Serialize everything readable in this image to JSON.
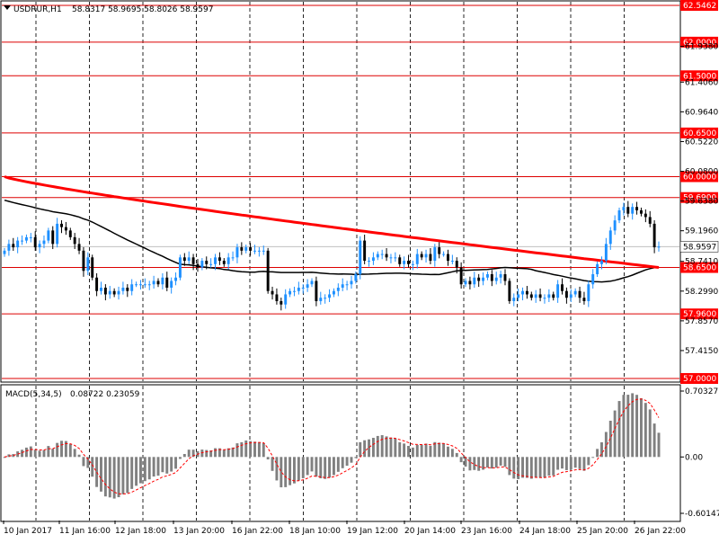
{
  "header": {
    "symbol_timeframe": "USDRUR,H1",
    "ohlc": "58.8317 58.9695 58.8026 58.9597"
  },
  "macd_header": {
    "title": "MACD(5,34,5)",
    "values": "0.08722 0.23059"
  },
  "colors": {
    "bull": "#1e90ff",
    "bear": "#000000",
    "ma_fast": "#000000",
    "ma_slow": "#ff0000",
    "level": "#dd0000",
    "macd_bar": "#808080",
    "signal": "#ff0000",
    "price_tag_bg": "#ffffff",
    "level_tag_bg": "#ff0000"
  },
  "chart_data": [
    {
      "type": "candlestick",
      "symbol": "USDRUR",
      "timeframe": "H1",
      "ylim": [
        56.9,
        62.7
      ],
      "grid": true,
      "price_ticks": [
        "61.9380",
        "61.4060",
        "60.9640",
        "60.5220",
        "60.0800",
        "59.6380",
        "59.1960",
        "58.7410",
        "58.2990",
        "57.8570",
        "57.4150"
      ],
      "levels": [
        "62.5462",
        "62.0000",
        "61.5000",
        "60.6500",
        "60.0000",
        "59.6900",
        "58.6500",
        "57.9600",
        "57.0000"
      ],
      "current_price": "58.9597",
      "time_labels": [
        "10 Jan 2017",
        "11 Jan 16:00",
        "12 Jan 18:00",
        "13 Jan 20:00",
        "16 Jan 22:00",
        "18 Jan 10:00",
        "19 Jan 12:00",
        "20 Jan 14:00",
        "23 Jan 16:00",
        "24 Jan 18:00",
        "25 Jan 20:00",
        "26 Jan 22:00"
      ],
      "closes": [
        58.9,
        59.0,
        58.95,
        59.05,
        59.05,
        59.1,
        59.1,
        58.95,
        59.0,
        59.05,
        59.2,
        59.0,
        59.3,
        59.25,
        59.2,
        59.1,
        59.0,
        58.9,
        58.6,
        58.8,
        58.5,
        58.3,
        58.35,
        58.25,
        58.3,
        58.25,
        58.3,
        58.35,
        58.3,
        58.4,
        58.4,
        58.4,
        58.4,
        58.4,
        58.45,
        58.4,
        58.5,
        58.35,
        58.45,
        58.5,
        58.8,
        58.75,
        58.8,
        58.7,
        58.65,
        58.75,
        58.7,
        58.7,
        58.8,
        58.75,
        58.7,
        58.8,
        58.8,
        58.95,
        58.9,
        58.95,
        58.9,
        58.9,
        58.9,
        58.9,
        58.3,
        58.25,
        58.15,
        58.1,
        58.25,
        58.3,
        58.3,
        58.35,
        58.35,
        58.4,
        58.45,
        58.15,
        58.2,
        58.2,
        58.25,
        58.3,
        58.35,
        58.4,
        58.4,
        58.45,
        58.55,
        59.05,
        58.75,
        58.75,
        58.8,
        58.85,
        58.85,
        58.8,
        58.8,
        58.8,
        58.7,
        58.75,
        58.7,
        58.7,
        58.85,
        58.8,
        58.85,
        58.75,
        58.95,
        58.85,
        58.85,
        58.75,
        58.75,
        58.65,
        58.4,
        58.45,
        58.4,
        58.5,
        58.45,
        58.5,
        58.55,
        58.45,
        58.5,
        58.55,
        58.45,
        58.15,
        58.2,
        58.25,
        58.3,
        58.25,
        58.2,
        58.25,
        58.2,
        58.2,
        58.25,
        58.2,
        58.4,
        58.3,
        58.2,
        58.25,
        58.3,
        58.2,
        58.15,
        58.4,
        58.55,
        58.7,
        58.75,
        59.0,
        59.2,
        59.35,
        59.5,
        59.55,
        59.45,
        59.55,
        59.5,
        59.45,
        59.4,
        59.3,
        58.95,
        58.96
      ]
    },
    {
      "type": "bar",
      "indicator": "MACD(5,34,5)",
      "ylim": [
        -0.6,
        0.7
      ],
      "ticks": [
        "0.70327",
        "0.00",
        "-0.60147"
      ],
      "macd": "0.08722",
      "signal": "0.23059"
    }
  ]
}
